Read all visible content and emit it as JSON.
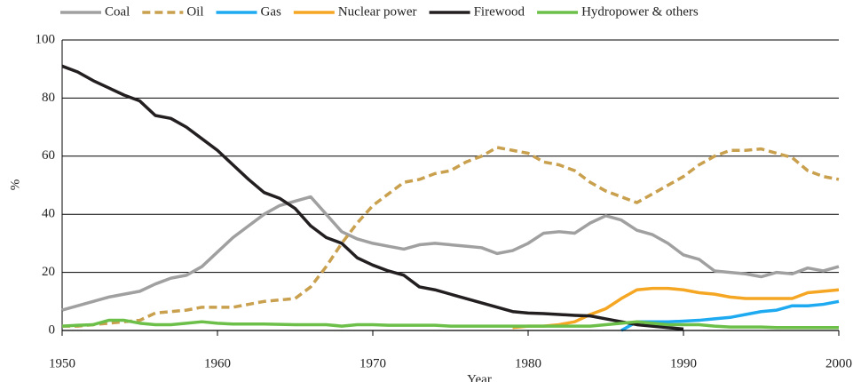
{
  "chart_data": {
    "type": "line",
    "x_label": "Year",
    "y_label": "%",
    "x": [
      1950,
      1951,
      1952,
      1953,
      1954,
      1955,
      1956,
      1957,
      1958,
      1959,
      1960,
      1961,
      1962,
      1963,
      1964,
      1965,
      1966,
      1967,
      1968,
      1969,
      1970,
      1971,
      1972,
      1973,
      1974,
      1975,
      1976,
      1977,
      1978,
      1979,
      1980,
      1981,
      1982,
      1983,
      1984,
      1985,
      1986,
      1987,
      1988,
      1989,
      1990,
      1991,
      1992,
      1993,
      1994,
      1995,
      1996,
      1997,
      1998,
      1999,
      2000
    ],
    "series": [
      {
        "name": "Coal",
        "color": "#a0a0a0",
        "dashed": false,
        "values": [
          7,
          8.5,
          10,
          11.5,
          12.5,
          13.5,
          16,
          18,
          19,
          22,
          27,
          32,
          36,
          40,
          43,
          44.5,
          46,
          40,
          34,
          31.5,
          30,
          29,
          28,
          29.5,
          30,
          29.5,
          29,
          28.5,
          26.5,
          27.5,
          30,
          33.5,
          34,
          33.5,
          37,
          39.5,
          38,
          34.5,
          33,
          30,
          26,
          24.5,
          20.5,
          20,
          19.5,
          18.5,
          20,
          19.5,
          21.5,
          20.5,
          22
        ]
      },
      {
        "name": "Oil",
        "color": "#c9a04e",
        "dashed": true,
        "values": [
          1.5,
          1.5,
          2,
          2.5,
          3,
          3.5,
          6,
          6.5,
          7,
          8,
          8,
          8,
          9,
          10,
          10.5,
          11,
          15,
          22,
          30,
          37,
          43,
          47,
          51,
          52,
          54,
          55,
          58,
          60,
          63,
          62,
          61,
          58,
          57,
          55,
          51,
          48,
          46,
          44,
          47,
          50,
          53,
          57,
          60,
          62,
          62,
          62.5,
          61,
          59.5,
          55,
          53,
          52
        ]
      },
      {
        "name": "Gas",
        "color": "#1eaaf0",
        "dashed": false,
        "values": [
          null,
          null,
          null,
          null,
          null,
          null,
          null,
          null,
          null,
          null,
          null,
          null,
          null,
          null,
          null,
          null,
          null,
          null,
          null,
          null,
          null,
          null,
          null,
          null,
          null,
          null,
          null,
          null,
          null,
          null,
          null,
          null,
          null,
          null,
          null,
          null,
          0,
          3,
          3,
          3,
          3.2,
          3.5,
          4,
          4.5,
          5.5,
          6.5,
          7,
          8.5,
          8.5,
          9,
          10
        ]
      },
      {
        "name": "Nuclear power",
        "color": "#f5a623",
        "dashed": false,
        "values": [
          null,
          null,
          null,
          null,
          null,
          null,
          null,
          null,
          null,
          null,
          null,
          null,
          null,
          null,
          null,
          null,
          null,
          null,
          null,
          null,
          null,
          null,
          null,
          null,
          null,
          null,
          null,
          null,
          null,
          1,
          1.5,
          1.5,
          2,
          3,
          5.5,
          7.5,
          11,
          14,
          14.5,
          14.5,
          14,
          13,
          12.5,
          11.5,
          11,
          11,
          11,
          11,
          13,
          13.5,
          14
        ]
      },
      {
        "name": "Firewood",
        "color": "#231f20",
        "dashed": false,
        "values": [
          91,
          89,
          86,
          83.5,
          81,
          79,
          74,
          73,
          70,
          66,
          62,
          57,
          52,
          47.5,
          45.5,
          42,
          36,
          32,
          30,
          25,
          22.5,
          20.5,
          19,
          15,
          14,
          12.5,
          11,
          9.5,
          8,
          6.5,
          6,
          5.8,
          5.5,
          5.2,
          5,
          4,
          3,
          2,
          1.5,
          1,
          0.5,
          null,
          null,
          null,
          null,
          null,
          null,
          null,
          null,
          null,
          null
        ]
      },
      {
        "name": "Hydropower & others",
        "color": "#6cc04a",
        "dashed": false,
        "values": [
          1.5,
          1.8,
          2,
          3.5,
          3.5,
          2.5,
          2,
          2,
          2.5,
          3,
          2.5,
          2.2,
          2.2,
          2.2,
          2.1,
          2,
          2,
          2,
          1.5,
          2,
          2,
          1.8,
          1.8,
          1.8,
          1.8,
          1.5,
          1.5,
          1.5,
          1.5,
          1.5,
          1.5,
          1.5,
          1.5,
          1.5,
          1.5,
          2,
          2.5,
          3,
          2.5,
          2,
          2,
          2,
          1.5,
          1.2,
          1.2,
          1.2,
          1,
          1,
          1,
          1,
          1
        ]
      }
    ],
    "xlim": [
      1950,
      2000
    ],
    "xticks": [
      1950,
      1960,
      1970,
      1980,
      1990,
      2000
    ],
    "ylim": [
      0,
      100
    ],
    "yticks": [
      0,
      20,
      40,
      60,
      80,
      100
    ],
    "grid": true,
    "legend": "top"
  }
}
